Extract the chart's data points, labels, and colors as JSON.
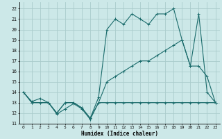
{
  "title": "",
  "xlabel": "Humidex (Indice chaleur)",
  "bg_color": "#cce8e8",
  "grid_color": "#aacccc",
  "line_color": "#1a6b6b",
  "xlim": [
    -0.5,
    23.5
  ],
  "ylim": [
    11,
    22.6
  ],
  "yticks": [
    11,
    12,
    13,
    14,
    15,
    16,
    17,
    18,
    19,
    20,
    21,
    22
  ],
  "xticks": [
    0,
    1,
    2,
    3,
    4,
    5,
    6,
    7,
    8,
    9,
    10,
    11,
    12,
    13,
    14,
    15,
    16,
    17,
    18,
    19,
    20,
    21,
    22,
    23
  ],
  "curve1_x": [
    0,
    1,
    2,
    3,
    4,
    5,
    6,
    7,
    8,
    9,
    10,
    11,
    12,
    13,
    14,
    15,
    16,
    17,
    18,
    19,
    20,
    21,
    22,
    23
  ],
  "curve1_y": [
    14,
    13,
    13,
    13,
    12,
    13,
    13,
    12.5,
    11.5,
    13.5,
    20,
    21,
    20.5,
    21.5,
    21,
    20.5,
    21.5,
    21.5,
    22,
    19,
    16.5,
    21.5,
    14,
    13
  ],
  "curve2_x": [
    0,
    1,
    2,
    3,
    4,
    5,
    6,
    7,
    8,
    9,
    10,
    11,
    12,
    13,
    14,
    15,
    16,
    17,
    18,
    19,
    20,
    21,
    22,
    23
  ],
  "curve2_y": [
    14,
    13.1,
    13.4,
    13.0,
    11.9,
    12.4,
    12.9,
    12.4,
    11.4,
    13.0,
    15.0,
    15.5,
    16.0,
    16.5,
    17.0,
    17.0,
    17.5,
    18.0,
    18.5,
    19.0,
    16.5,
    16.5,
    15.5,
    13.0
  ],
  "curve3_x": [
    0,
    1,
    2,
    3,
    4,
    5,
    6,
    7,
    8,
    9,
    10,
    11,
    12,
    13,
    14,
    15,
    16,
    17,
    18,
    19,
    20,
    21,
    22,
    23
  ],
  "curve3_y": [
    14,
    13,
    13,
    13,
    12,
    13,
    13,
    12.5,
    11.5,
    13,
    13,
    13,
    13,
    13,
    13,
    13,
    13,
    13,
    13,
    13,
    13,
    13,
    13,
    13
  ]
}
